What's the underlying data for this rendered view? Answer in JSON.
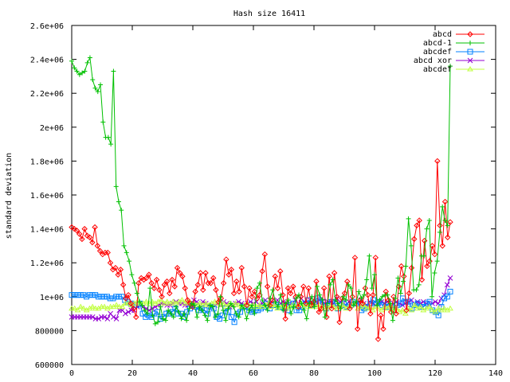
{
  "chart_data": {
    "type": "line",
    "title": "Hash size 16411",
    "xlabel": "",
    "ylabel": "standard deviation",
    "xlim": [
      0,
      140
    ],
    "ylim": [
      600000,
      2600000
    ],
    "grid": false,
    "legend_position": "top-right",
    "x_ticks": [
      "0",
      "20",
      "40",
      "60",
      "80",
      "100",
      "120",
      "140"
    ],
    "y_ticks": [
      "600000",
      "800000",
      "1e+06",
      "1.2e+06",
      "1.4e+06",
      "1.6e+06",
      "1.8e+06",
      "2e+06",
      "2.2e+06",
      "2.4e+06",
      "2.6e+06"
    ],
    "series": [
      {
        "name": "abcd",
        "color": "#ff0000",
        "marker": "diamond",
        "values": [
          1410000,
          1400000,
          1390000,
          1370000,
          1340000,
          1400000,
          1360000,
          1350000,
          1320000,
          1410000,
          1300000,
          1270000,
          1250000,
          1260000,
          1260000,
          1200000,
          1160000,
          1170000,
          1130000,
          1160000,
          1070000,
          990000,
          1010000,
          960000,
          930000,
          880000,
          1080000,
          1110000,
          1100000,
          1110000,
          1130000,
          1080000,
          1050000,
          1100000,
          1040000,
          1000000,
          1070000,
          1090000,
          1020000,
          1100000,
          1060000,
          1170000,
          1140000,
          1120000,
          1050000,
          980000,
          960000,
          940000,
          1030000,
          1070000,
          1140000,
          1040000,
          1140000,
          1080000,
          1080000,
          1110000,
          1040000,
          970000,
          990000,
          1080000,
          1220000,
          1130000,
          1160000,
          1020000,
          1090000,
          1030000,
          1170000,
          1060000,
          950000,
          1050000,
          1000000,
          1030000,
          990000,
          1010000,
          1150000,
          1250000,
          1060000,
          950000,
          980000,
          1120000,
          1050000,
          1150000,
          1010000,
          870000,
          1050000,
          1020000,
          1060000,
          1000000,
          940000,
          1000000,
          1060000,
          960000,
          1050000,
          950000,
          970000,
          1090000,
          910000,
          930000,
          1050000,
          880000,
          1120000,
          930000,
          1140000,
          1000000,
          850000,
          990000,
          1020000,
          1090000,
          930000,
          1000000,
          1230000,
          810000,
          980000,
          960000,
          1050000,
          1010000,
          900000,
          1010000,
          1230000,
          750000,
          890000,
          810000,
          1030000,
          980000,
          910000,
          1000000,
          900000,
          1060000,
          1180000,
          1120000,
          920000,
          1020000,
          1170000,
          1340000,
          1420000,
          1450000,
          1100000,
          1330000,
          1180000,
          1210000,
          1300000,
          1250000,
          1800000,
          1420000,
          1300000,
          1560000,
          1350000,
          1440000
        ]
      },
      {
        "name": "abcd-1",
        "color": "#00c000",
        "marker": "plus",
        "values": [
          2390000,
          2350000,
          2330000,
          2310000,
          2320000,
          2330000,
          2380000,
          2410000,
          2280000,
          2230000,
          2210000,
          2250000,
          2030000,
          1940000,
          1940000,
          1900000,
          2330000,
          1650000,
          1560000,
          1510000,
          1300000,
          1260000,
          1210000,
          1130000,
          1080000,
          1020000,
          970000,
          950000,
          920000,
          900000,
          1050000,
          890000,
          840000,
          850000,
          940000,
          870000,
          860000,
          920000,
          900000,
          880000,
          940000,
          910000,
          870000,
          900000,
          860000,
          930000,
          960000,
          950000,
          880000,
          940000,
          920000,
          890000,
          860000,
          950000,
          940000,
          880000,
          900000,
          1000000,
          920000,
          860000,
          930000,
          960000,
          940000,
          900000,
          880000,
          950000,
          930000,
          870000,
          920000,
          950000,
          900000,
          1050000,
          1080000,
          980000,
          950000,
          920000,
          990000,
          1040000,
          970000,
          940000,
          1010000,
          920000,
          960000,
          980000,
          900000,
          940000,
          990000,
          1010000,
          960000,
          920000,
          870000,
          960000,
          1000000,
          940000,
          1060000,
          1010000,
          980000,
          880000,
          960000,
          1070000,
          1100000,
          980000,
          960000,
          930000,
          1000000,
          980000,
          1070000,
          1050000,
          950000,
          970000,
          1030000,
          990000,
          1010000,
          1100000,
          1240000,
          1050000,
          1130000,
          950000,
          980000,
          1000000,
          1010000,
          1010000,
          960000,
          860000,
          990000,
          1110000,
          1020000,
          1090000,
          1180000,
          1460000,
          1300000,
          1040000,
          1040000,
          1070000,
          1240000,
          1240000,
          1400000,
          1450000,
          1000000,
          1140000,
          1210000,
          1380000,
          1530000,
          1450000,
          1420000,
          2360000
        ]
      },
      {
        "name": "abcdef",
        "color": "#0080ff",
        "marker": "square",
        "values": [
          1010000,
          1010000,
          1010000,
          1010000,
          1010000,
          1000000,
          1010000,
          1010000,
          1010000,
          1000000,
          1000000,
          1000000,
          1000000,
          990000,
          990000,
          1000000,
          1000000,
          1000000,
          980000,
          970000,
          960000,
          950000,
          950000,
          960000,
          900000,
          880000,
          890000,
          880000,
          900000,
          910000,
          870000,
          880000,
          900000,
          900000,
          910000,
          930000,
          900000,
          900000,
          880000,
          910000,
          930000,
          950000,
          940000,
          920000,
          930000,
          920000,
          900000,
          940000,
          930000,
          880000,
          870000,
          890000,
          930000,
          910000,
          880000,
          850000,
          900000,
          910000,
          940000,
          940000,
          920000,
          910000,
          920000,
          920000,
          930000,
          940000,
          960000,
          930000,
          950000,
          950000,
          940000,
          940000,
          930000,
          920000,
          950000,
          960000,
          920000,
          920000,
          940000,
          960000,
          980000,
          950000,
          960000,
          990000,
          980000,
          970000,
          930000,
          950000,
          970000,
          960000,
          930000,
          950000,
          960000,
          940000,
          950000,
          970000,
          960000,
          960000,
          920000,
          930000,
          940000,
          960000,
          980000,
          960000,
          970000,
          950000,
          940000,
          960000,
          940000,
          920000,
          950000,
          960000,
          990000,
          970000,
          970000,
          930000,
          950000,
          960000,
          940000,
          940000,
          960000,
          970000,
          920000,
          910000,
          890000,
          940000,
          990000,
          1000000,
          1030000
        ]
      },
      {
        "name": "abcd xor",
        "color": "#9400d3",
        "marker": "cross",
        "values": [
          880000,
          880000,
          880000,
          880000,
          880000,
          880000,
          880000,
          880000,
          870000,
          870000,
          880000,
          880000,
          870000,
          900000,
          880000,
          870000,
          920000,
          920000,
          900000,
          910000,
          920000,
          920000,
          940000,
          950000,
          940000,
          930000,
          920000,
          930000,
          940000,
          950000,
          960000,
          960000,
          950000,
          950000,
          960000,
          970000,
          960000,
          960000,
          950000,
          950000,
          960000,
          980000,
          970000,
          940000,
          970000,
          960000,
          950000,
          940000,
          950000,
          960000,
          950000,
          970000,
          960000,
          940000,
          950000,
          960000,
          970000,
          960000,
          950000,
          960000,
          970000,
          960000,
          970000,
          950000,
          960000,
          980000,
          960000,
          970000,
          960000,
          980000,
          960000,
          970000,
          960000,
          950000,
          960000,
          980000,
          960000,
          990000,
          970000,
          960000,
          980000,
          960000,
          950000,
          980000,
          970000,
          960000,
          970000,
          970000,
          960000,
          990000,
          970000,
          960000,
          950000,
          970000,
          960000,
          950000,
          960000,
          980000,
          960000,
          950000,
          970000,
          960000,
          950000,
          960000,
          970000,
          960000,
          970000,
          950000,
          960000,
          970000,
          960000,
          950000,
          960000,
          970000,
          980000,
          960000,
          970000,
          960000,
          970000,
          960000,
          950000,
          960000,
          970000,
          960000,
          990000,
          1010000,
          1070000,
          1110000
        ]
      },
      {
        "name": "abcdef",
        "color": "#c0ff40",
        "marker": "triangle",
        "values": [
          930000,
          930000,
          920000,
          940000,
          930000,
          920000,
          930000,
          940000,
          930000,
          930000,
          940000,
          940000,
          930000,
          940000,
          940000,
          950000,
          940000,
          940000,
          960000,
          960000,
          950000,
          960000,
          970000,
          960000,
          960000,
          970000,
          960000,
          970000,
          960000,
          970000,
          980000,
          960000,
          970000,
          960000,
          970000,
          960000,
          970000,
          980000,
          960000,
          970000,
          960000,
          960000,
          950000,
          960000,
          950000,
          960000,
          950000,
          960000,
          970000,
          960000,
          950000,
          960000,
          940000,
          960000,
          950000,
          960000,
          950000,
          940000,
          950000,
          960000,
          940000,
          950000,
          940000,
          950000,
          940000,
          950000,
          960000,
          940000,
          950000,
          930000,
          940000,
          950000,
          930000,
          940000,
          950000,
          940000,
          950000,
          960000,
          940000,
          950000,
          940000,
          950000,
          940000,
          950000,
          930000,
          940000,
          930000,
          950000,
          940000,
          930000,
          940000,
          950000,
          930000,
          940000,
          950000,
          960000,
          930000,
          940000,
          950000,
          930000,
          940000,
          920000,
          940000,
          930000,
          920000,
          940000,
          930000,
          950000,
          920000,
          930000,
          910000,
          920000,
          900000,
          930000,
          920000,
          950000,
          930000,
          940000,
          920000,
          930000,
          940000,
          920000,
          910000,
          930000,
          920000,
          930000,
          920000,
          930000
        ]
      }
    ]
  }
}
